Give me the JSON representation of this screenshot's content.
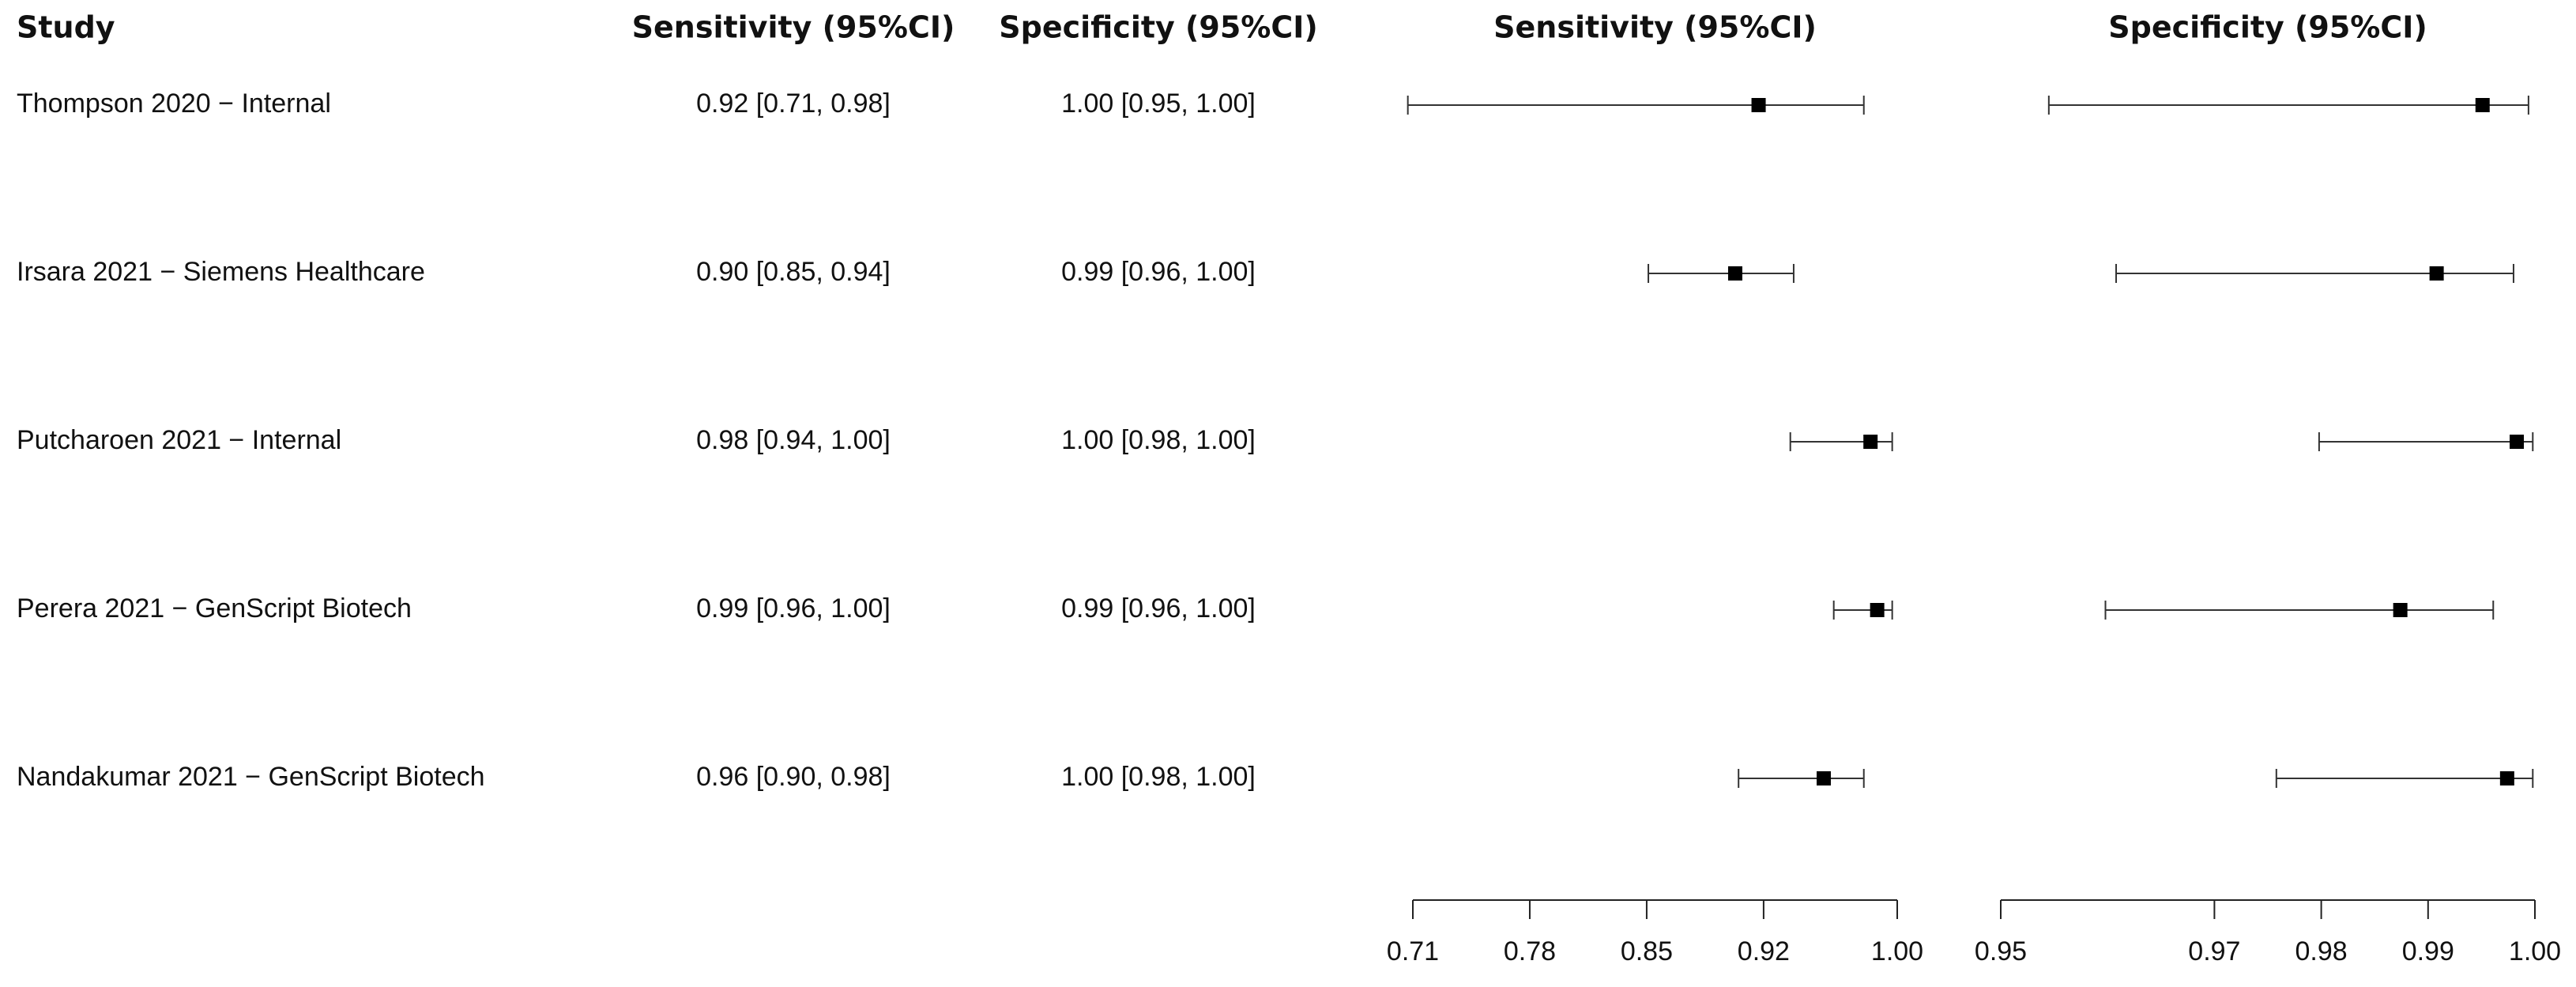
{
  "chart_data": {
    "type": "forest",
    "category_header": "Study",
    "categories": [
      "Thompson 2020 − Internal",
      "Irsara 2021 − Siemens Healthcare",
      "Putcharoen 2021 − Internal",
      "Perera 2021 − GenScript Biotech",
      "Nandakumar 2021 − GenScript Biotech"
    ],
    "series": [
      {
        "name": "Sensitivity (95%CI)",
        "color": "#000000",
        "values": [
          0.917,
          0.903,
          0.984,
          0.988,
          0.956
        ],
        "lower": [
          0.707,
          0.851,
          0.936,
          0.962,
          0.905
        ],
        "upper": [
          0.98,
          0.938,
          0.997,
          0.997,
          0.98
        ],
        "value_labels": [
          "0.92 [0.71, 0.98]",
          "0.90 [0.85, 0.94]",
          "0.98 [0.94, 1.00]",
          "0.99 [0.96, 1.00]",
          "0.96 [0.90, 0.98]"
        ],
        "xlim": [
          0.71,
          1
        ],
        "xticks": [
          0.71,
          0.78,
          0.85,
          0.92,
          {
            "value": 1,
            "label": "1.00"
          }
        ]
      },
      {
        "name": "Specificity (95%CI)",
        "color": "#000000",
        "values": [
          0.9951,
          0.9908,
          0.9983,
          0.9874,
          0.9974
        ],
        "lower": [
          0.9545,
          0.9608,
          0.9798,
          0.9598,
          0.9758
        ],
        "upper": [
          0.9994,
          0.998,
          0.9998,
          0.9961,
          0.9998
        ],
        "value_labels": [
          "1.00 [0.95, 1.00]",
          "0.99 [0.96, 1.00]",
          "1.00 [0.98, 1.00]",
          "0.99 [0.96, 1.00]",
          "1.00 [0.98, 1.00]"
        ],
        "xlim": [
          0.95,
          1
        ],
        "xticks": [
          0.95,
          0.97,
          0.98,
          0.99,
          {
            "value": 1,
            "label": "1.00"
          }
        ]
      }
    ]
  }
}
